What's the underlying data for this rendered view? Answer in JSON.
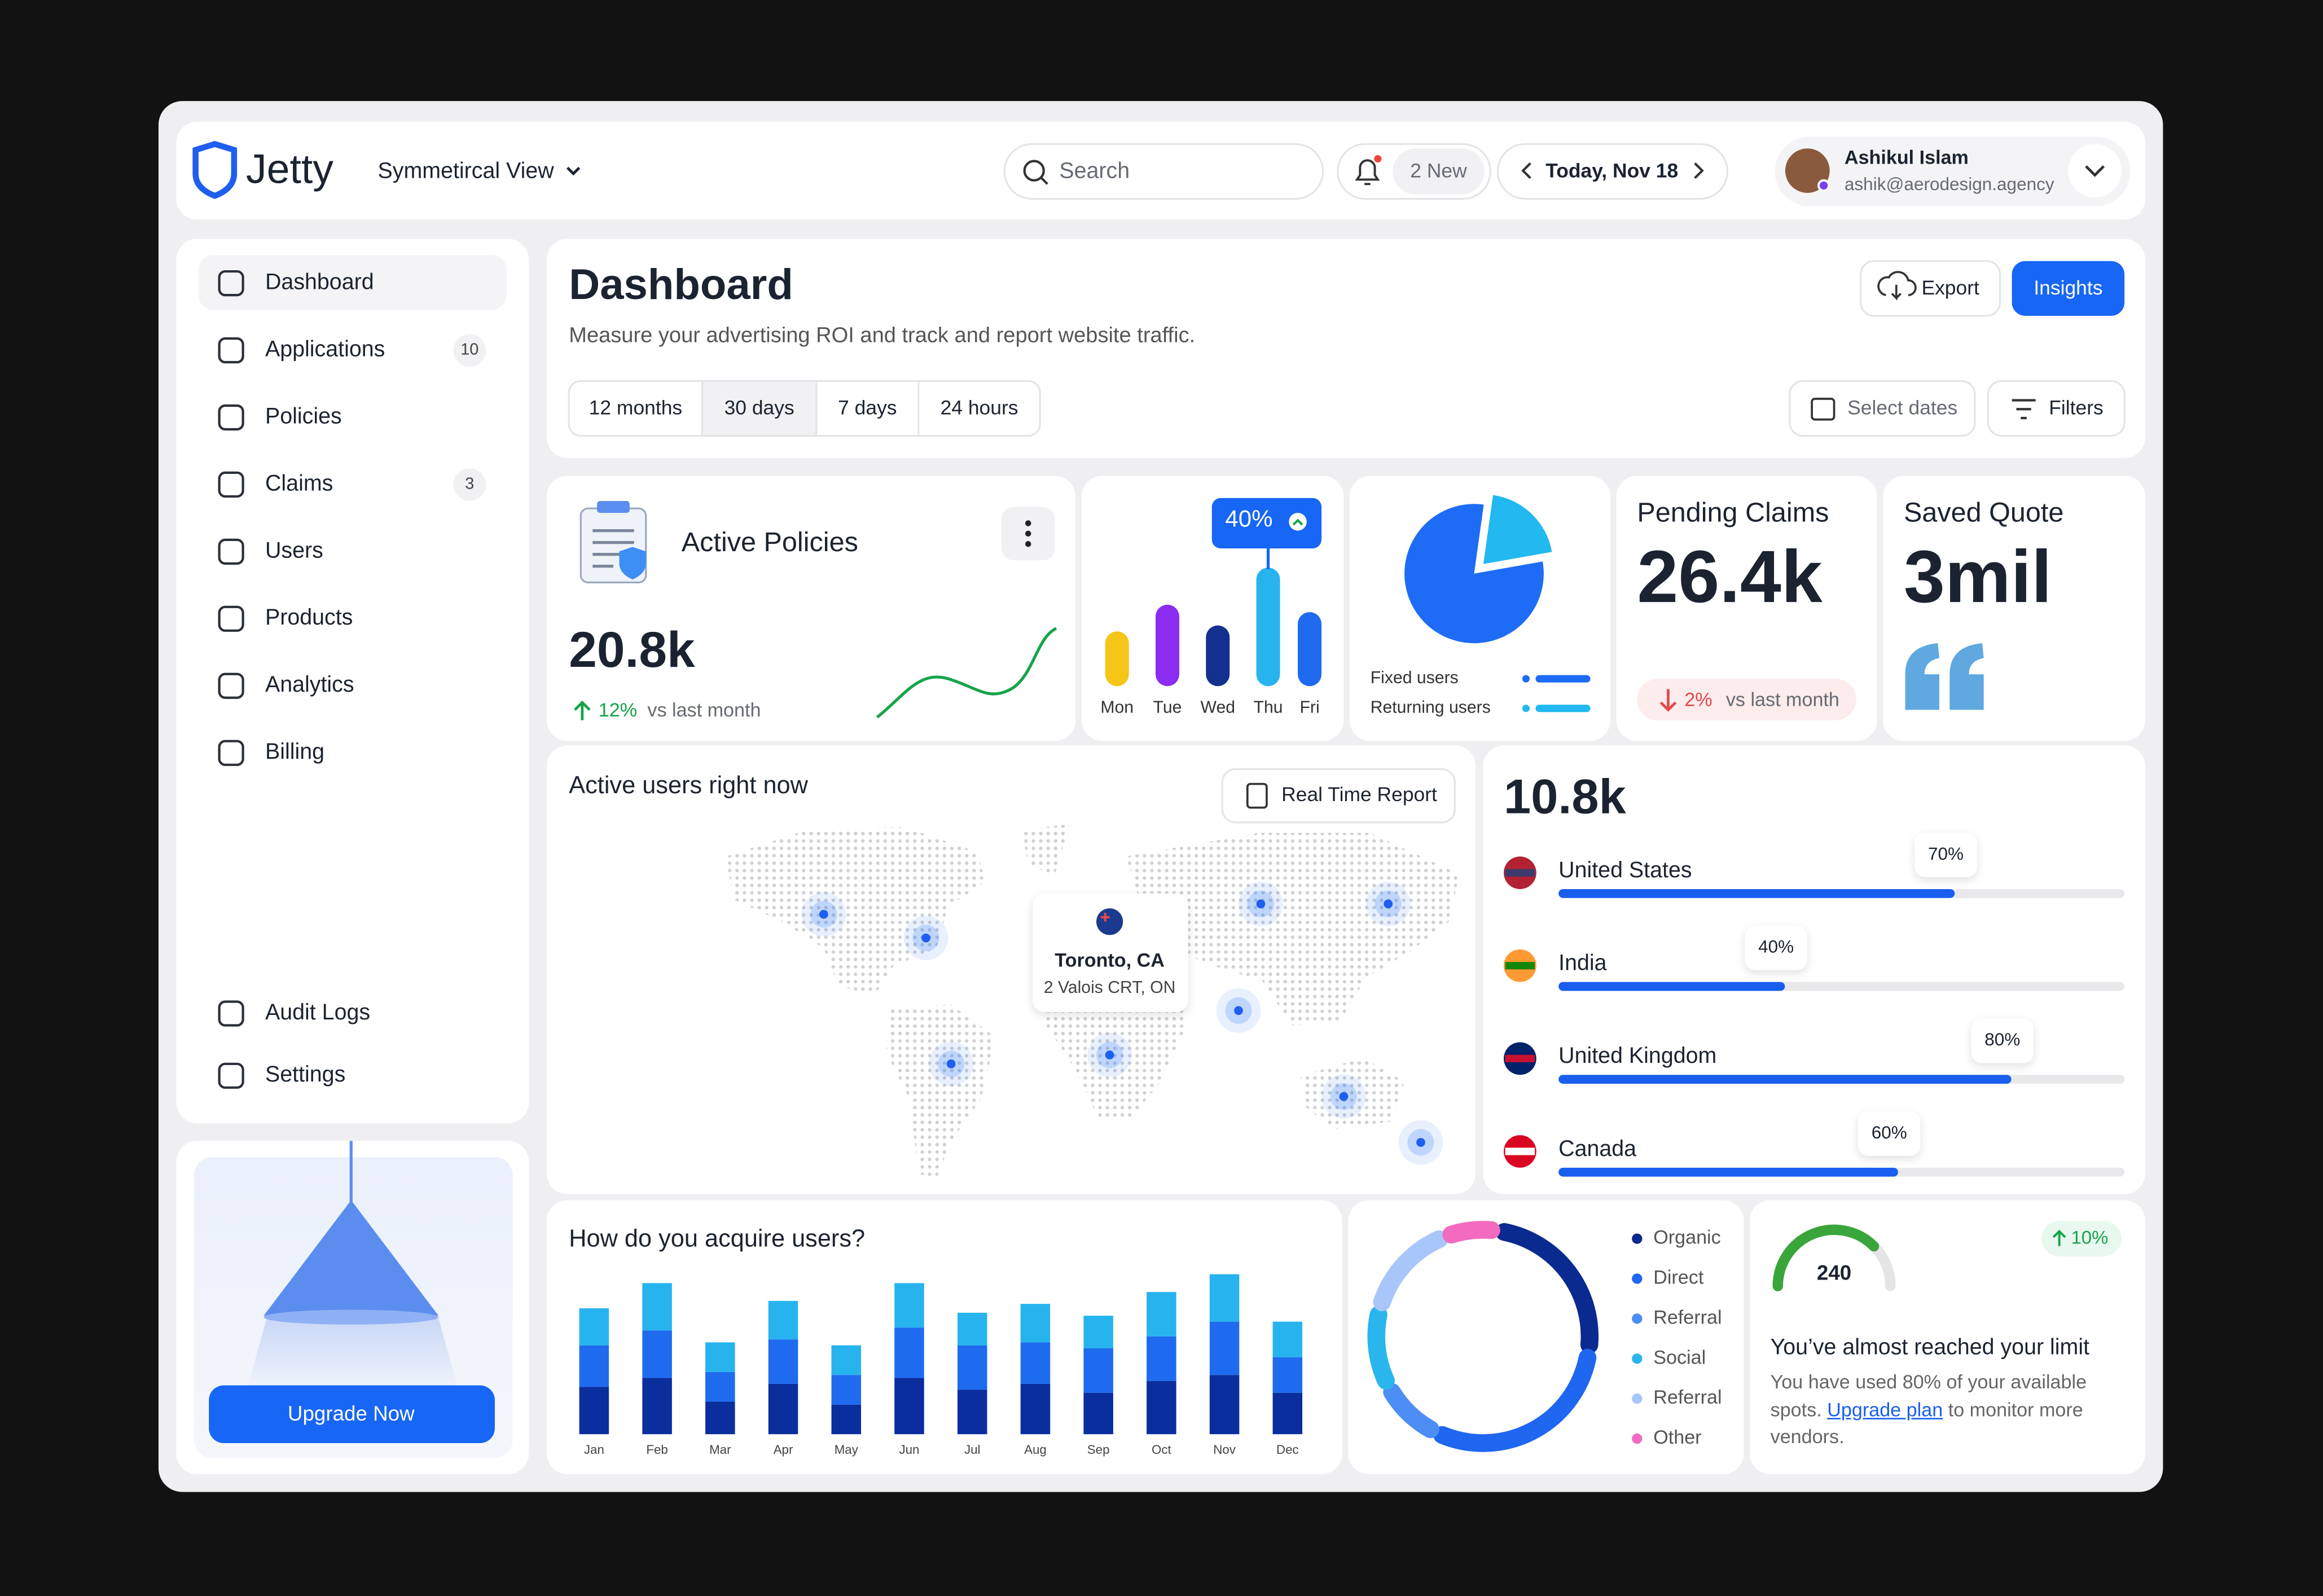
{
  "header": {
    "brand": "Jetty",
    "view": "Symmetircal View",
    "search": "Search",
    "notifications": "2 New",
    "date": "Today, Nov 18",
    "user": {
      "name": "Ashikul Islam",
      "email": "ashik@aerodesign.agency"
    }
  },
  "sidebar": {
    "nav": [
      {
        "label": "Dashboard"
      },
      {
        "label": "Applications",
        "badge": "10"
      },
      {
        "label": "Policies"
      },
      {
        "label": "Claims",
        "badge": "3"
      },
      {
        "label": "Users"
      },
      {
        "label": "Products"
      },
      {
        "label": "Analytics"
      },
      {
        "label": "Billing"
      }
    ],
    "footer_nav": [
      {
        "label": "Audit Logs"
      },
      {
        "label": "Settings"
      }
    ],
    "upgrade_button": "Upgrade Now"
  },
  "page_header": {
    "title": "Dashboard",
    "subtitle": "Measure your advertising ROI and track and report website traffic.",
    "export": "Export",
    "insights": "Insights",
    "ranges": [
      "12 months",
      "30 days",
      "7 days",
      "24 hours"
    ],
    "select_dates": "Select dates",
    "filters": "Filters"
  },
  "active_policies": {
    "title": "Active Policies",
    "value": "20.8k",
    "change": "12%",
    "change_note": "vs last month"
  },
  "weekday_chart": {
    "type": "bar",
    "categories": [
      "Mon",
      "Tue",
      "Wed",
      "Thu",
      "Fri"
    ],
    "values": [
      37,
      55,
      41,
      80,
      50
    ],
    "colors": [
      "#f5c518",
      "#8b2cf0",
      "#13308f",
      "#27b4ee",
      "#1f6bf0"
    ],
    "badge": "40%"
  },
  "users_pie": {
    "type": "pie",
    "categories": [
      "Fixed users",
      "Returning users"
    ],
    "values": [
      80,
      20
    ],
    "colors": [
      "#1e6cf5",
      "#22b8f0"
    ]
  },
  "pending_claims": {
    "title": "Pending Claims",
    "value": "26.4k",
    "change": "2%",
    "change_note": "vs last month"
  },
  "saved_quote": {
    "title": "Saved Quote",
    "value": "3mil"
  },
  "active_users": {
    "title": "Active users right now",
    "button": "Real Time Report",
    "location": {
      "city": "Toronto, CA",
      "address": "2 Valois CRT, ON"
    }
  },
  "countries": {
    "type": "bar",
    "total": "10.8k",
    "categories": [
      "United States",
      "India",
      "United Kingdom",
      "Canada"
    ],
    "values": [
      70,
      40,
      80,
      60
    ],
    "value_labels": [
      "70%",
      "40%",
      "80%",
      "60%"
    ],
    "color": "#1a5ef0"
  },
  "acquisition": {
    "type": "bar",
    "stacked": true,
    "title": "How do you acquire users?",
    "categories": [
      "Jan",
      "Feb",
      "Mar",
      "Apr",
      "May",
      "Jun",
      "Jul",
      "Aug",
      "Sep",
      "Oct",
      "Nov",
      "Dec"
    ],
    "series": [
      {
        "color": "#0b2e9e",
        "values": [
          32,
          38,
          22,
          34,
          20,
          38,
          30,
          34,
          28,
          36,
          40,
          28
        ]
      },
      {
        "color": "#1f6bf0",
        "values": [
          28,
          32,
          20,
          30,
          20,
          34,
          30,
          28,
          30,
          30,
          36,
          24
        ]
      },
      {
        "color": "#27b4ee",
        "values": [
          25,
          32,
          20,
          26,
          20,
          30,
          22,
          26,
          22,
          30,
          32,
          24
        ]
      }
    ]
  },
  "channels": {
    "type": "donut",
    "categories": [
      "Organic",
      "Direct",
      "Referral",
      "Social",
      "Referral",
      "Other"
    ],
    "values": [
      25,
      30,
      10,
      12,
      15,
      8
    ],
    "colors": [
      "#0b2a8f",
      "#1f66f0",
      "#4d8ef5",
      "#2ab6ec",
      "#a9c6fb",
      "#f26bbf"
    ]
  },
  "limit": {
    "value": "240",
    "change": "10%",
    "title": "You’ve almost reached your limit",
    "message": "You have used 80% of your available spots.",
    "link": "Upgrade plan",
    "message_end": "to monitor more vendors."
  }
}
